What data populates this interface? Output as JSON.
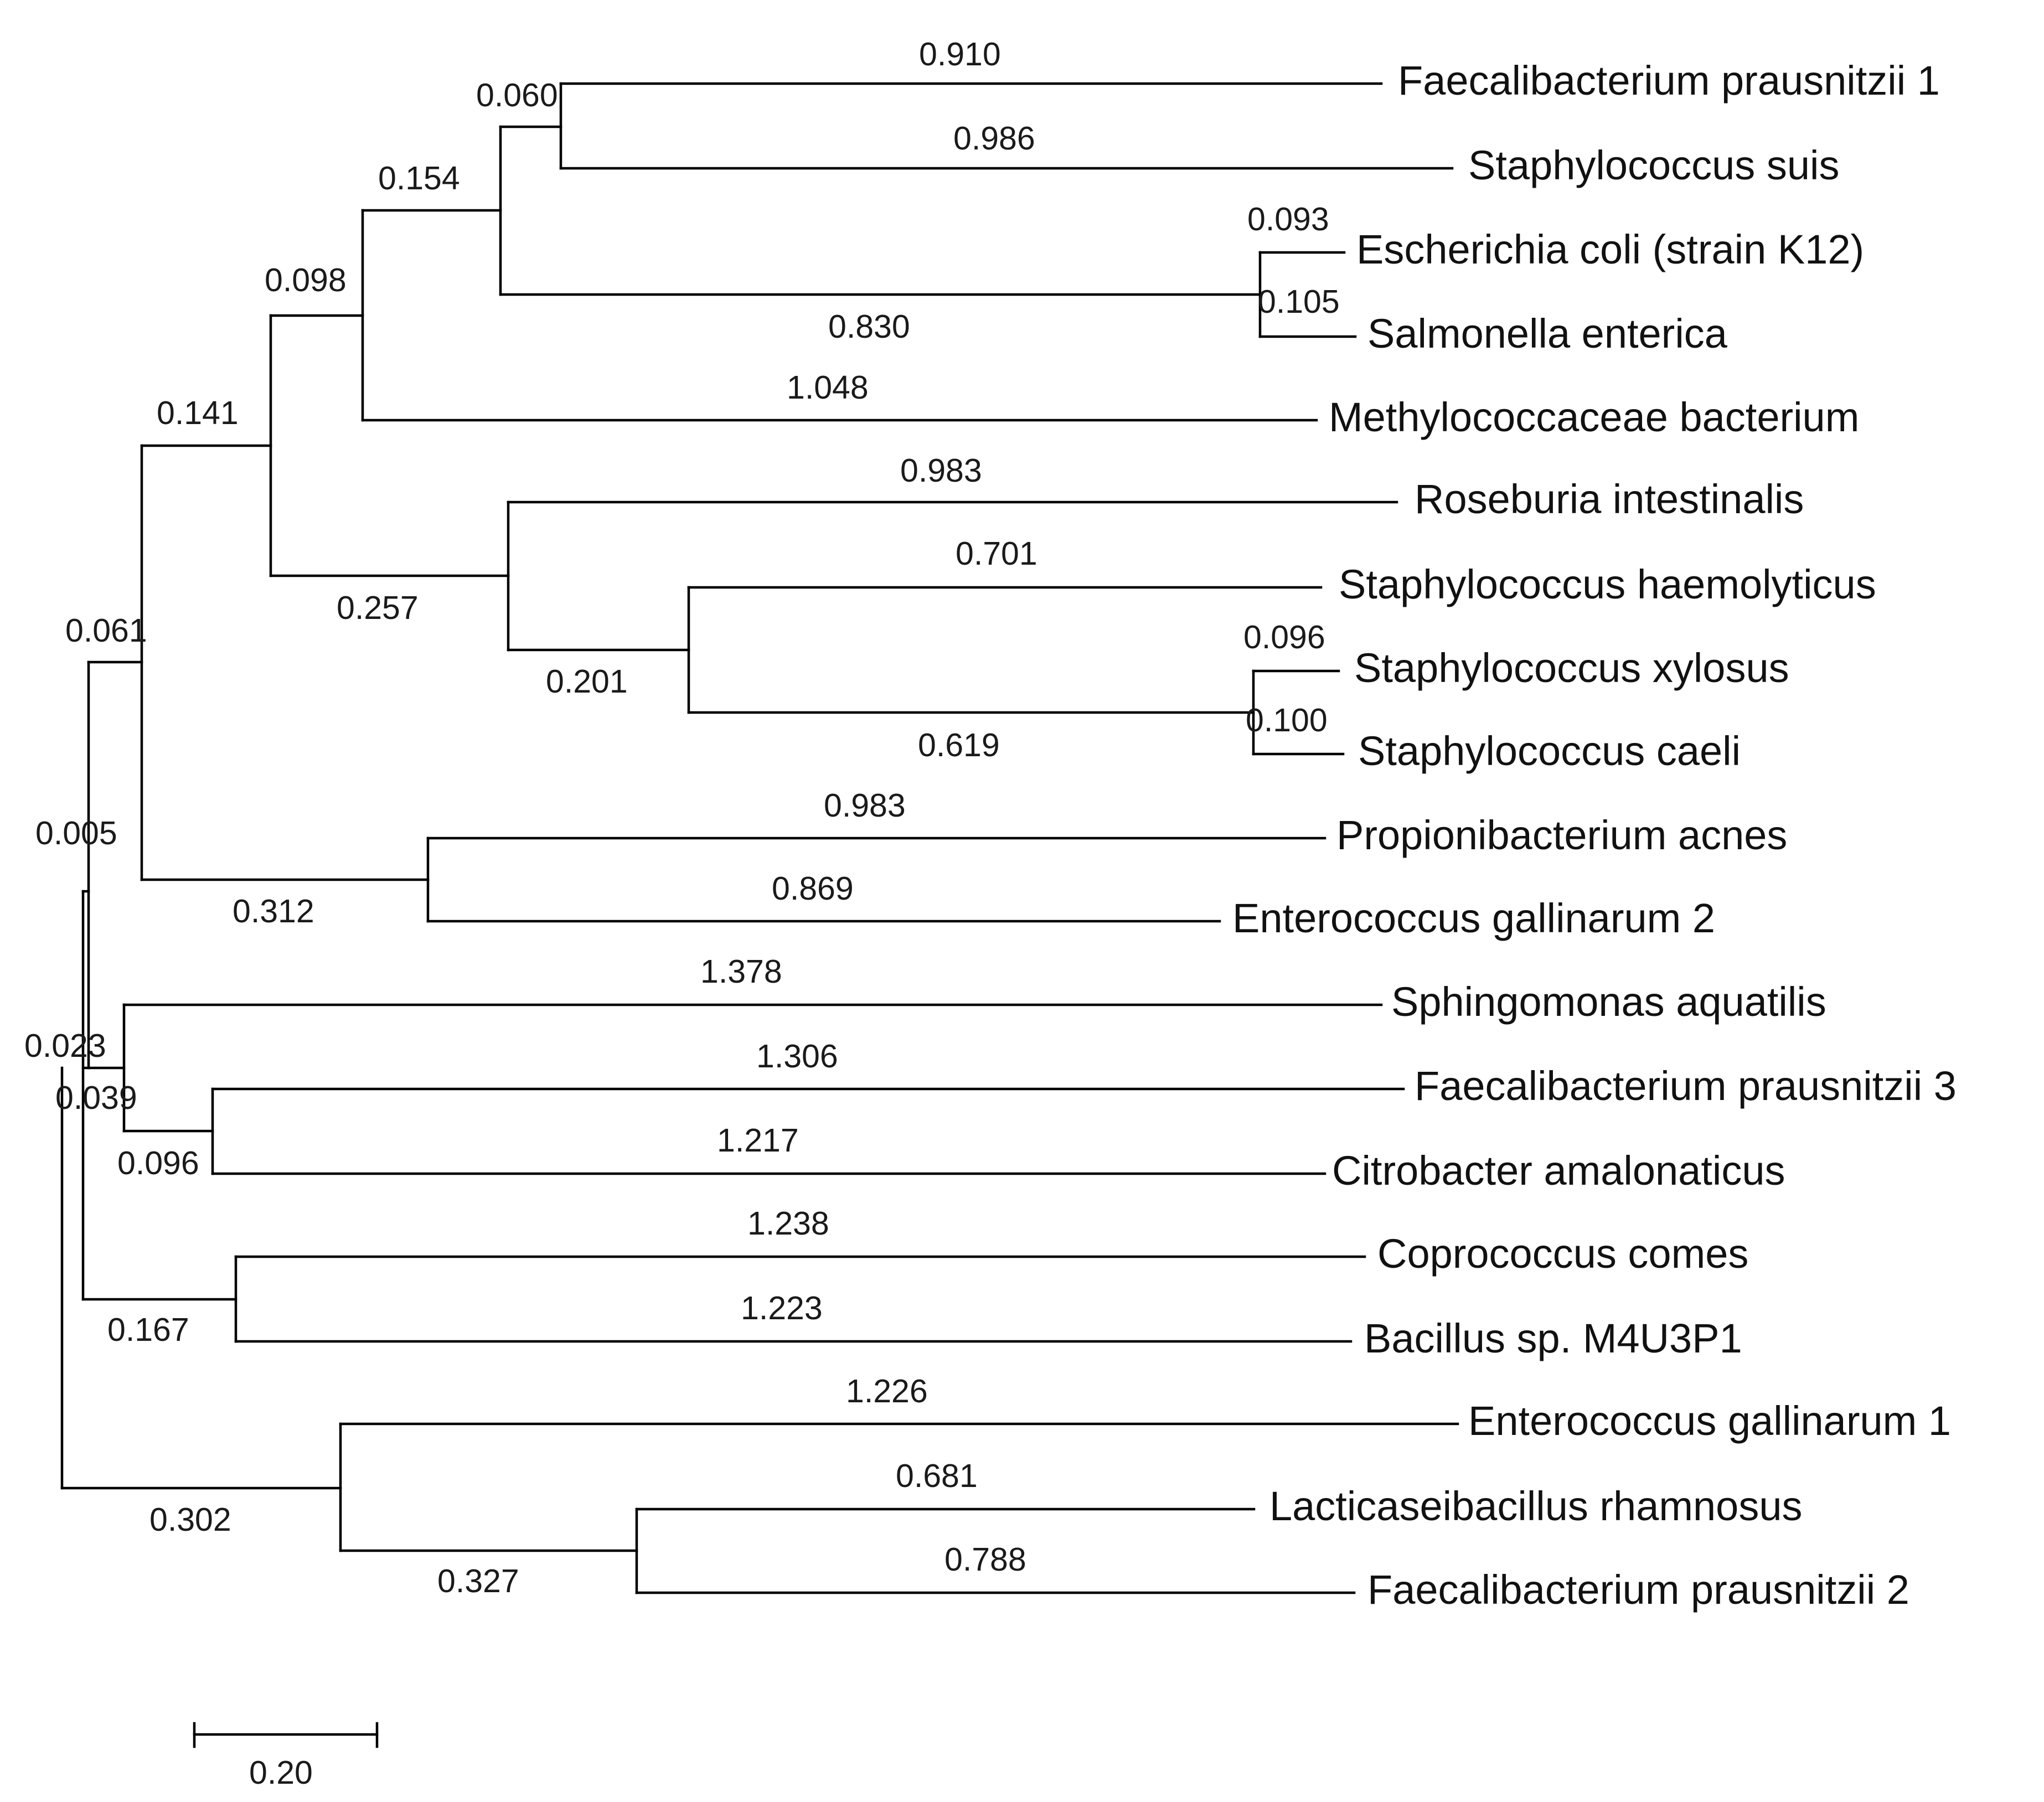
{
  "tree": {
    "leaves": [
      "Faecalibacterium prausnitzii 1",
      "Staphylococcus suis",
      "Escherichia coli (strain K12)",
      "Salmonella enterica",
      "Methylococcaceae bacterium",
      "Roseburia intestinalis",
      "Staphylococcus haemolyticus",
      "Staphylococcus xylosus",
      "Staphylococcus caeli",
      "Propionibacterium acnes",
      "Enterococcus gallinarum 2",
      "Sphingomonas aquatilis",
      "Faecalibacterium prausnitzii 3",
      "Citrobacter amalonaticus",
      "Coprococcus comes",
      "Bacillus sp. M4U3P1",
      "Enterococcus gallinarum 1",
      "Lacticaseibacillus rhamnosus",
      "Faecalibacterium prausnitzii 2"
    ],
    "branch_lengths": {
      "faecalibacterium_prausnitzii_1": "0.910",
      "staphylococcus_suis": "0.986",
      "clade_fp1_suis": "0.060",
      "escherichia_coli": "0.093",
      "salmonella_enterica": "0.105",
      "clade_ecoli_salmonella": "0.830",
      "clade_fp1_suis_ecoli": "0.154",
      "methylococcaceae_bacterium": "1.048",
      "clade_upper": "0.098",
      "roseburia_intestinalis": "0.983",
      "staphylococcus_haemolyticus": "0.701",
      "staphylococcus_xylosus": "0.096",
      "staphylococcus_caeli": "0.100",
      "clade_xylosus_caeli": "0.619",
      "clade_staph": "0.201",
      "clade_roseburia_staph": "0.257",
      "clade_big": "0.141",
      "propionibacterium_acnes": "0.983",
      "enterococcus_gallinarum_2": "0.869",
      "clade_propioni_entero2": "0.312",
      "clade_top": "0.061",
      "clade_upper_group": "0.005",
      "sphingomonas_aquatilis": "1.378",
      "faecalibacterium_prausnitzii_3": "1.306",
      "citrobacter_amalonaticus": "1.217",
      "clade_fp3_citrobacter": "0.096",
      "clade_sphingo_group": "0.039",
      "clade_middle": "0.023",
      "coprococcus_comes": "1.238",
      "bacillus_sp": "1.223",
      "clade_coprococcus_bacillus": "0.167",
      "enterococcus_gallinarum_1": "1.226",
      "lacticaseibacillus_rhamnosus": "0.681",
      "faecalibacterium_prausnitzii_2": "0.788",
      "clade_lacto_fp2": "0.327",
      "clade_bottom": "0.302"
    },
    "scale_bar": "0.20"
  }
}
